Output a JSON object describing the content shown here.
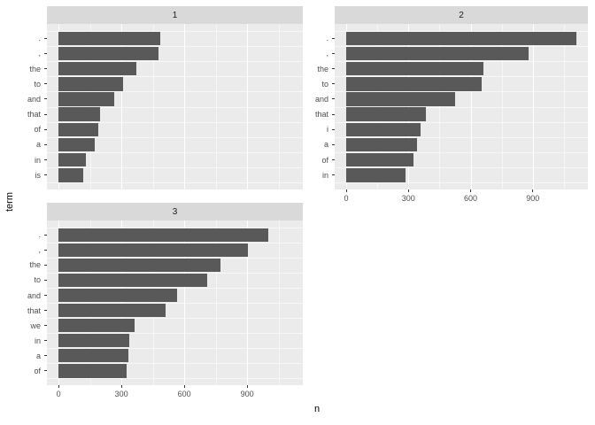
{
  "colors": {
    "background": "#FFFFFF",
    "panel_background": "#EBEBEB",
    "strip_background": "#D9D9D9",
    "bar_fill": "#595959",
    "grid_line": "#FFFFFF",
    "axis_text": "#4D4D4D",
    "strip_text": "#1A1A1A",
    "tick_mark": "#333333",
    "axis_title_text": "#000000"
  },
  "chart_data": {
    "type": "bar",
    "orientation": "horizontal",
    "theme": "ggplot2-grey",
    "grid": "on",
    "xlabel": "n",
    "ylabel": "term",
    "facet_labels": [
      "1",
      "2",
      "3"
    ],
    "x_major_ticks": [
      0,
      300,
      600,
      900
    ],
    "x_minor_ticks": [
      150,
      450,
      750,
      1050
    ],
    "x_expanded_range": [
      -55.5,
      1165.5
    ],
    "facets": [
      {
        "label": "1",
        "bars": [
          {
            "term": ".",
            "n": 485
          },
          {
            "term": ",",
            "n": 478
          },
          {
            "term": "the",
            "n": 370
          },
          {
            "term": "to",
            "n": 307
          },
          {
            "term": "and",
            "n": 268
          },
          {
            "term": "that",
            "n": 200
          },
          {
            "term": "of",
            "n": 190
          },
          {
            "term": "a",
            "n": 174
          },
          {
            "term": "in",
            "n": 130
          },
          {
            "term": "is",
            "n": 120
          }
        ]
      },
      {
        "label": "2",
        "bars": [
          {
            "term": ".",
            "n": 1110
          },
          {
            "term": ",",
            "n": 880
          },
          {
            "term": "the",
            "n": 660
          },
          {
            "term": "to",
            "n": 655
          },
          {
            "term": "and",
            "n": 525
          },
          {
            "term": "that",
            "n": 385
          },
          {
            "term": "i",
            "n": 360
          },
          {
            "term": "a",
            "n": 340
          },
          {
            "term": "of",
            "n": 325
          },
          {
            "term": "in",
            "n": 285
          }
        ]
      },
      {
        "label": "3",
        "bars": [
          {
            "term": ".",
            "n": 1000
          },
          {
            "term": ",",
            "n": 905
          },
          {
            "term": "the",
            "n": 775
          },
          {
            "term": "to",
            "n": 710
          },
          {
            "term": "and",
            "n": 565
          },
          {
            "term": "that",
            "n": 510
          },
          {
            "term": "we",
            "n": 365
          },
          {
            "term": "in",
            "n": 336
          },
          {
            "term": "a",
            "n": 333
          },
          {
            "term": "of",
            "n": 323
          }
        ]
      }
    ]
  }
}
